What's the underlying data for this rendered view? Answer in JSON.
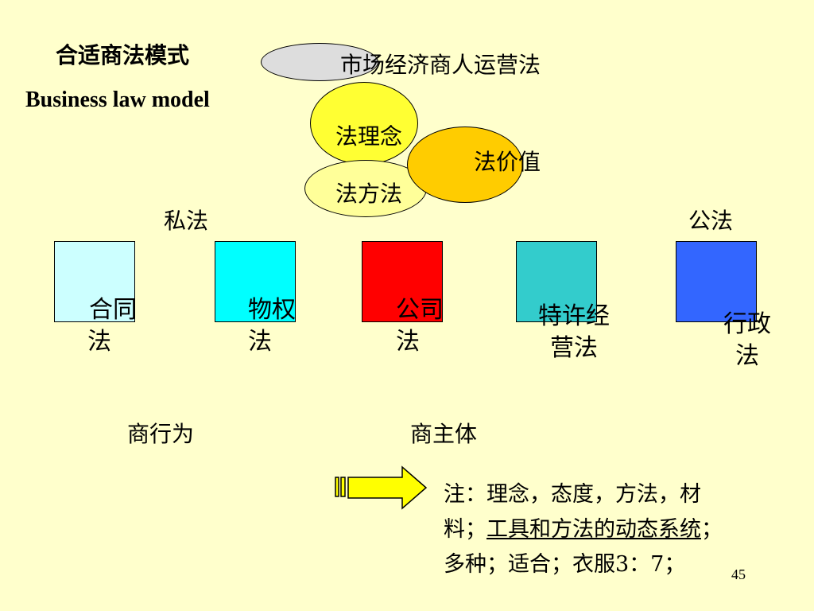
{
  "title_cn": "合适商法模式",
  "title_en": "Business law model",
  "ellipses": {
    "market": "市场经济商人运营法",
    "concept": "法理念",
    "value": "法价值",
    "method": "法方法"
  },
  "labels": {
    "private_law": "私法",
    "public_law": "公法",
    "commercial_act": "商行为",
    "commercial_subject": "商主体"
  },
  "boxes": [
    {
      "line1": "合同",
      "line2": "法",
      "color": "#CCFFFF"
    },
    {
      "line1": "物权",
      "line2": "法",
      "color": "#00FFFF"
    },
    {
      "line1": "公司",
      "line2": "法",
      "color": "#FF0000"
    },
    {
      "line1": "特许经",
      "line2": "营法",
      "color": "#33CCCC"
    },
    {
      "line1": "行政",
      "line2": "法",
      "color": "#3366FF"
    }
  ],
  "note": {
    "part1": "注：理念，态度，方法，材料；",
    "underlined": "工具和方法的动态系统",
    "part2": "；多种；适合；衣服3：7；"
  },
  "page_number": "45",
  "colors": {
    "background": "#FFFFCC",
    "market_ellipse": "#DDDDDD",
    "concept_ellipse": "#FFFF33",
    "value_ellipse": "#FFCC00",
    "method_ellipse": "#FFFF99",
    "arrow": "#FFFF00"
  }
}
